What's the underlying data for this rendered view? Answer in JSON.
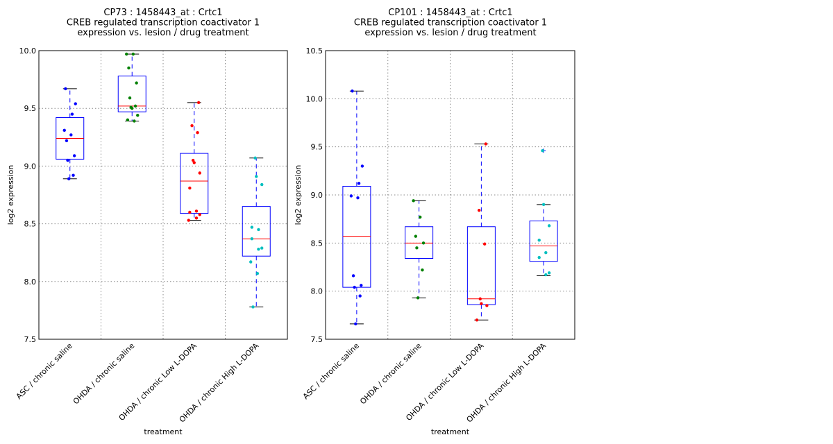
{
  "chart_data": [
    {
      "type": "box",
      "title_lines": [
        "CP73 : 1458443_at : Crtc1",
        "CREB regulated transcription coactivator 1",
        "expression vs. lesion / drug treatment"
      ],
      "xlabel": "treatment",
      "ylabel": "log2 expression",
      "ylim": [
        7.5,
        10.0
      ],
      "yticks": [
        "10.0",
        "9.5",
        "9.0",
        "8.5",
        "8.0",
        "7.5"
      ],
      "ytick_values": [
        10.0,
        9.5,
        9.0,
        8.5,
        8.0,
        7.5
      ],
      "grid": true,
      "categories": [
        "ASC / chronic saline",
        "OHDA / chronic saline",
        "OHDA / chronic Low L-DOPA",
        "OHDA / chronic High L-DOPA"
      ],
      "series": [
        {
          "name": "ASC / chronic saline",
          "color": "#0000ff",
          "whisker_low": 8.89,
          "q1": 9.06,
          "median": 9.24,
          "q3": 9.42,
          "whisker_high": 9.67,
          "fliers": [],
          "points": [
            9.67,
            9.54,
            9.45,
            9.31,
            9.27,
            9.22,
            9.09,
            9.05,
            8.92,
            8.89
          ]
        },
        {
          "name": "OHDA / chronic saline",
          "color": "#008000",
          "whisker_low": 9.39,
          "q1": 9.47,
          "median": 9.52,
          "q3": 9.78,
          "whisker_high": 9.97,
          "fliers": [],
          "points": [
            9.97,
            9.97,
            9.85,
            9.72,
            9.59,
            9.52,
            9.51,
            9.5,
            9.44,
            9.4,
            9.39
          ]
        },
        {
          "name": "OHDA / chronic Low L-DOPA",
          "color": "#ff0000",
          "whisker_low": 8.53,
          "q1": 8.59,
          "median": 8.87,
          "q3": 9.11,
          "whisker_high": 9.55,
          "fliers": [],
          "points": [
            9.55,
            9.35,
            9.29,
            9.05,
            9.03,
            8.94,
            8.81,
            8.61,
            8.6,
            8.58,
            8.55,
            8.53
          ]
        },
        {
          "name": "OHDA / chronic High L-DOPA",
          "color": "#00bfbf",
          "whisker_low": 7.78,
          "q1": 8.22,
          "median": 8.37,
          "q3": 8.65,
          "whisker_high": 9.07,
          "fliers": [],
          "points": [
            9.07,
            8.91,
            8.84,
            8.47,
            8.45,
            8.37,
            8.29,
            8.28,
            8.17,
            8.07,
            7.78
          ]
        }
      ]
    },
    {
      "type": "box",
      "title_lines": [
        "CP101 : 1458443_at : Crtc1",
        "CREB regulated transcription coactivator 1",
        "expression vs. lesion / drug treatment"
      ],
      "xlabel": "treatment",
      "ylabel": "log2 expression",
      "ylim": [
        7.5,
        10.5
      ],
      "yticks": [
        "10.5",
        "10.0",
        "9.5",
        "9.0",
        "8.5",
        "8.0",
        "7.5"
      ],
      "ytick_values": [
        10.5,
        10.0,
        9.5,
        9.0,
        8.5,
        8.0,
        7.5
      ],
      "grid": true,
      "categories": [
        "ASC / chronic saline",
        "OHDA / chronic saline",
        "OHDA / chronic Low L-DOPA",
        "OHDA / chronic High L-DOPA"
      ],
      "series": [
        {
          "name": "ASC / chronic saline",
          "color": "#0000ff",
          "whisker_low": 7.66,
          "q1": 8.04,
          "median": 8.57,
          "q3": 9.09,
          "whisker_high": 10.08,
          "fliers": [],
          "points": [
            10.08,
            9.3,
            9.12,
            8.99,
            8.97,
            8.16,
            8.06,
            8.04,
            7.95,
            7.66
          ]
        },
        {
          "name": "OHDA / chronic saline",
          "color": "#008000",
          "whisker_low": 7.93,
          "q1": 8.34,
          "median": 8.5,
          "q3": 8.67,
          "whisker_high": 8.94,
          "fliers": [],
          "points": [
            8.94,
            8.77,
            8.57,
            8.5,
            8.45,
            8.22,
            7.93
          ]
        },
        {
          "name": "OHDA / chronic Low L-DOPA",
          "color": "#ff0000",
          "whisker_low": 7.7,
          "q1": 7.86,
          "median": 7.92,
          "q3": 8.67,
          "whisker_high": 9.53,
          "fliers": [],
          "points": [
            9.53,
            8.84,
            8.49,
            7.92,
            7.87,
            7.85,
            7.7
          ]
        },
        {
          "name": "OHDA / chronic High L-DOPA",
          "color": "#00bfbf",
          "whisker_low": 8.16,
          "q1": 8.31,
          "median": 8.47,
          "q3": 8.73,
          "whisker_high": 8.9,
          "fliers": [
            9.46
          ],
          "points": [
            9.46,
            8.9,
            8.68,
            8.53,
            8.4,
            8.35,
            8.19,
            8.17
          ]
        }
      ]
    }
  ]
}
